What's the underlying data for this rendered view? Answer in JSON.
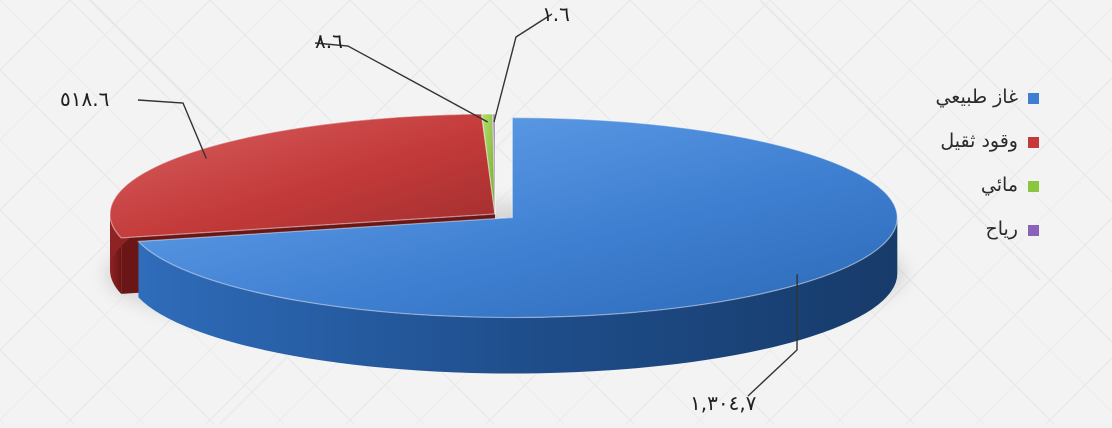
{
  "chart_data": {
    "type": "pie",
    "categories": [
      "غاز طبيعي",
      "وقود ثقيل",
      "مائي",
      "رياح"
    ],
    "values": [
      1304.7,
      518.6,
      8.6,
      1.6
    ],
    "value_labels": [
      "١,٣٠٤,٧",
      "٥١٨.٦",
      "٨.٦",
      "١.٦"
    ],
    "colors": [
      "#3f7fd1",
      "#c43a3a",
      "#8cc63f",
      "#8a63b8"
    ],
    "legend_position": "right",
    "exploded_slice": "غاز طبيعي",
    "style": "3d"
  }
}
